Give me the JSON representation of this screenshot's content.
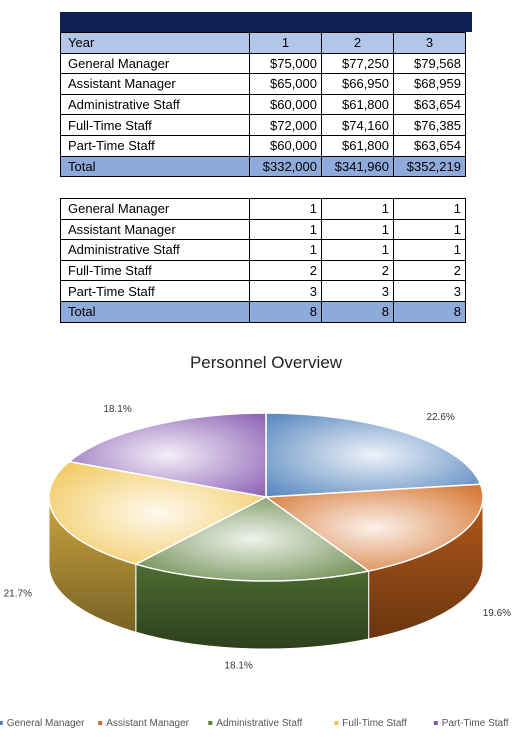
{
  "table1": {
    "header": {
      "label": "Year",
      "cols": [
        "1",
        "2",
        "3"
      ]
    },
    "rows": [
      {
        "label": "General Manager",
        "values": [
          "$75,000",
          "$77,250",
          "$79,568"
        ]
      },
      {
        "label": "Assistant Manager",
        "values": [
          "$65,000",
          "$66,950",
          "$68,959"
        ]
      },
      {
        "label": "Administrative Staff",
        "values": [
          "$60,000",
          "$61,800",
          "$63,654"
        ]
      },
      {
        "label": "Full-Time Staff",
        "values": [
          "$72,000",
          "$74,160",
          "$76,385"
        ]
      },
      {
        "label": "Part-Time Staff",
        "values": [
          "$60,000",
          "$61,800",
          "$63,654"
        ]
      }
    ],
    "total": {
      "label": "Total",
      "values": [
        "$332,000",
        "$341,960",
        "$352,219"
      ]
    }
  },
  "table2": {
    "rows": [
      {
        "label": "General Manager",
        "values": [
          "1",
          "1",
          "1"
        ]
      },
      {
        "label": "Assistant Manager",
        "values": [
          "1",
          "1",
          "1"
        ]
      },
      {
        "label": "Administrative Staff",
        "values": [
          "1",
          "1",
          "1"
        ]
      },
      {
        "label": "Full-Time Staff",
        "values": [
          "2",
          "2",
          "2"
        ]
      },
      {
        "label": "Part-Time Staff",
        "values": [
          "3",
          "3",
          "3"
        ]
      }
    ],
    "total": {
      "label": "Total",
      "values": [
        "8",
        "8",
        "8"
      ]
    }
  },
  "colors": {
    "banner": "#0d2253",
    "header_fill": "#b4c6e7",
    "total_fill": "#8eaadb"
  },
  "chart_data": {
    "type": "pie",
    "title": "Personnel Overview",
    "three_d": true,
    "legend_position": "bottom",
    "slices": [
      {
        "name": "General Manager",
        "value": 22.6,
        "label": "22.6%",
        "color": "#4a7ebb"
      },
      {
        "name": "Assistant Manager",
        "value": 19.6,
        "label": "19.6%",
        "color": "#d2691e"
      },
      {
        "name": "Administrative Staff",
        "value": 18.1,
        "label": "18.1%",
        "color": "#5a7f3a"
      },
      {
        "name": "Full-Time Staff",
        "value": 21.7,
        "label": "21.7%",
        "color": "#f0c24a"
      },
      {
        "name": "Part-Time Staff",
        "value": 18.1,
        "label": "18.1%",
        "color": "#8457b0"
      }
    ]
  }
}
